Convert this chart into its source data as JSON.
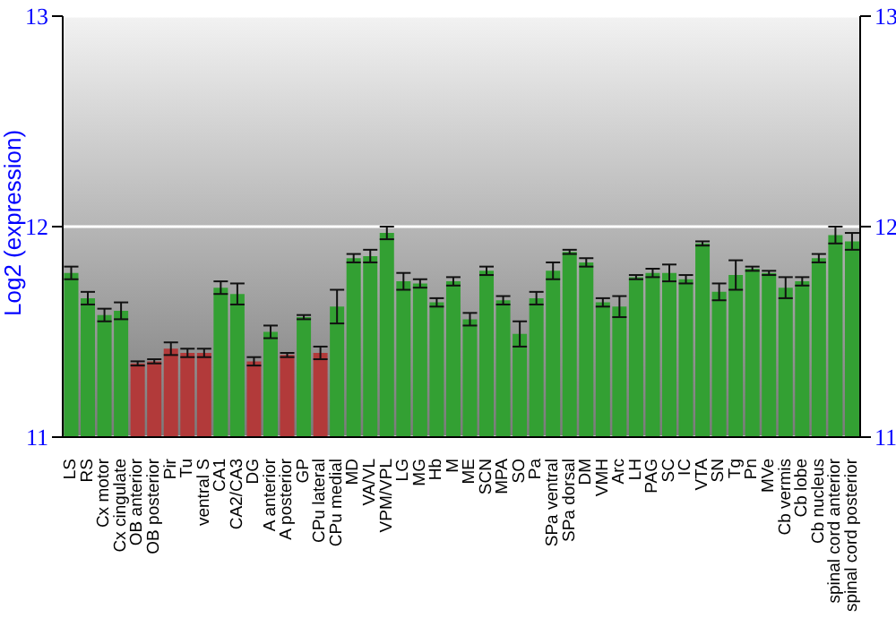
{
  "chart_data": {
    "type": "bar",
    "ylabel": "Log2 (expression)",
    "categories": [
      "LS",
      "RS",
      "Cx motor",
      "Cx cingulate",
      "OB anterior",
      "OB posterior",
      "Pir",
      "Tu",
      "ventral S",
      "CA1",
      "CA2/CA3",
      "DG",
      "A anterior",
      "A posterior",
      "GP",
      "CPu lateral",
      "CPu medial",
      "MD",
      "VA/VL",
      "VPM/VPL",
      "LG",
      "MG",
      "Hb",
      "M",
      "ME",
      "SCN",
      "MPA",
      "SO",
      "Pa",
      "SPa ventral",
      "SPa dorsal",
      "DM",
      "VMH",
      "Arc",
      "LH",
      "PAG",
      "SC",
      "IC",
      "VTA",
      "SN",
      "Tg",
      "Pn",
      "MVe",
      "Cb vermis",
      "Cb lobe",
      "Cb nucleus",
      "spinal cord anterior",
      "spinal cord posterior"
    ],
    "values": [
      11.78,
      11.66,
      11.58,
      11.6,
      11.35,
      11.36,
      11.42,
      11.4,
      11.4,
      11.71,
      11.68,
      11.36,
      11.5,
      11.39,
      11.57,
      11.4,
      11.62,
      11.85,
      11.86,
      11.97,
      11.74,
      11.73,
      11.64,
      11.74,
      11.56,
      11.79,
      11.65,
      11.49,
      11.66,
      11.79,
      11.88,
      11.83,
      11.64,
      11.62,
      11.76,
      11.78,
      11.78,
      11.75,
      11.92,
      11.69,
      11.77,
      11.8,
      11.78,
      11.71,
      11.74,
      11.85,
      11.96,
      11.93
    ],
    "errors": [
      0.03,
      0.03,
      0.03,
      0.04,
      0.01,
      0.01,
      0.03,
      0.02,
      0.02,
      0.03,
      0.05,
      0.02,
      0.03,
      0.01,
      0.01,
      0.03,
      0.08,
      0.02,
      0.03,
      0.03,
      0.04,
      0.02,
      0.02,
      0.02,
      0.03,
      0.02,
      0.02,
      0.06,
      0.03,
      0.04,
      0.01,
      0.02,
      0.02,
      0.05,
      0.01,
      0.02,
      0.04,
      0.02,
      0.01,
      0.04,
      0.07,
      0.01,
      0.01,
      0.05,
      0.02,
      0.02,
      0.04,
      0.04
    ],
    "colors": [
      "#33a033",
      "#33a033",
      "#33a033",
      "#33a033",
      "#b23a3a",
      "#b23a3a",
      "#b23a3a",
      "#b23a3a",
      "#b23a3a",
      "#33a033",
      "#33a033",
      "#b23a3a",
      "#33a033",
      "#b23a3a",
      "#33a033",
      "#b23a3a",
      "#33a033",
      "#33a033",
      "#33a033",
      "#33a033",
      "#33a033",
      "#33a033",
      "#33a033",
      "#33a033",
      "#33a033",
      "#33a033",
      "#33a033",
      "#33a033",
      "#33a033",
      "#33a033",
      "#33a033",
      "#33a033",
      "#33a033",
      "#33a033",
      "#33a033",
      "#33a033",
      "#33a033",
      "#33a033",
      "#33a033",
      "#33a033",
      "#33a033",
      "#33a033",
      "#33a033",
      "#33a033",
      "#33a033",
      "#33a033",
      "#33a033",
      "#33a033"
    ],
    "ylim": [
      11,
      13
    ],
    "yticks": [
      11,
      12,
      13
    ],
    "y2lim": [
      11,
      13
    ],
    "y2ticks": [
      11,
      12,
      13
    ],
    "grid": "y"
  }
}
